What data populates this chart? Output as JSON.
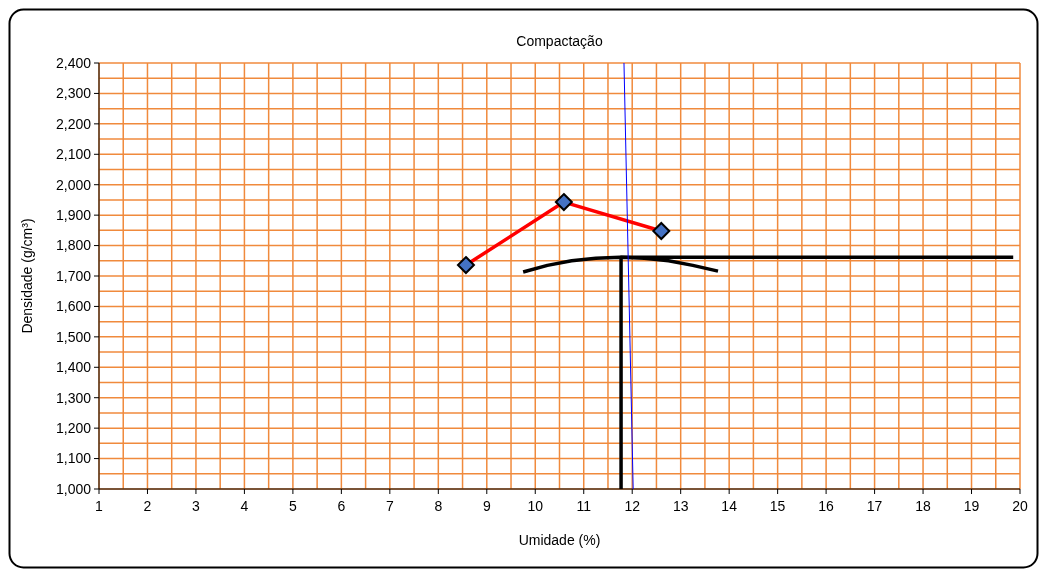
{
  "chart_data": {
    "type": "line",
    "title": "Compactação",
    "xlabel": "Umidade (%)",
    "ylabel": "Densidade (g/cm³)",
    "xlim": [
      1,
      20
    ],
    "xticks": [
      1,
      {
        "value": 1.5,
        "label": null
      },
      2,
      {
        "value": 2.5,
        "label": null
      },
      3,
      {
        "value": 3.5,
        "label": null
      },
      4,
      {
        "value": 4.5,
        "label": null
      },
      5,
      {
        "value": 5.5,
        "label": null
      },
      6,
      {
        "value": 6.5,
        "label": null
      },
      7,
      {
        "value": 7.5,
        "label": null
      },
      8,
      {
        "value": 8.5,
        "label": null
      },
      9,
      {
        "value": 9.5,
        "label": null
      },
      10,
      {
        "value": 10.5,
        "label": null
      },
      11,
      {
        "value": 11.5,
        "label": null
      },
      12,
      {
        "value": 12.5,
        "label": null
      },
      13,
      {
        "value": 13.5,
        "label": null
      },
      14,
      {
        "value": 14.5,
        "label": null
      },
      15,
      {
        "value": 15.5,
        "label": null
      },
      16,
      {
        "value": 16.5,
        "label": null
      },
      17,
      {
        "value": 17.5,
        "label": null
      },
      18,
      {
        "value": 18.5,
        "label": null
      },
      19,
      {
        "value": 19.5,
        "label": null
      },
      20
    ],
    "ylim": [
      1000,
      2400
    ],
    "yticks": [
      {
        "value": 1000,
        "label": "1,000"
      },
      {
        "value": 1050,
        "label": null
      },
      {
        "value": 1100,
        "label": "1,100"
      },
      {
        "value": 1150,
        "label": null
      },
      {
        "value": 1200,
        "label": "1,200"
      },
      {
        "value": 1250,
        "label": null
      },
      {
        "value": 1300,
        "label": "1,300"
      },
      {
        "value": 1350,
        "label": null
      },
      {
        "value": 1400,
        "label": "1,400"
      },
      {
        "value": 1450,
        "label": null
      },
      {
        "value": 1500,
        "label": "1,500"
      },
      {
        "value": 1550,
        "label": null
      },
      {
        "value": 1600,
        "label": "1,600"
      },
      {
        "value": 1650,
        "label": null
      },
      {
        "value": 1700,
        "label": "1,700"
      },
      {
        "value": 1750,
        "label": null
      },
      {
        "value": 1800,
        "label": "1,800"
      },
      {
        "value": 1850,
        "label": null
      },
      {
        "value": 1900,
        "label": "1,900"
      },
      {
        "value": 1950,
        "label": null
      },
      {
        "value": 2000,
        "label": "2,000"
      },
      {
        "value": 2050,
        "label": null
      },
      {
        "value": 2100,
        "label": "2,100"
      },
      {
        "value": 2150,
        "label": null
      },
      {
        "value": 2200,
        "label": "2,200"
      },
      {
        "value": 2250,
        "label": null
      },
      {
        "value": 2300,
        "label": "2,300"
      },
      {
        "value": 2350,
        "label": null
      },
      {
        "value": 2400,
        "label": "2,400"
      }
    ],
    "grid": true,
    "series": [
      {
        "color": "#ff0000",
        "marker": "diamond",
        "x": [
          8.57,
          10.59,
          12.6
        ],
        "values": [
          1736,
          1943,
          1848
        ]
      },
      {
        "color": "#000000",
        "marker": "none",
        "x": [
          9.75,
          10.25,
          10.75,
          11.25,
          11.75,
          12.25,
          12.75,
          13.25,
          13.77
        ],
        "values": [
          1713,
          1735,
          1750,
          1758,
          1762,
          1758,
          1750,
          1735,
          1716
        ]
      },
      {
        "color": "#000000",
        "marker": "none",
        "x": [
          11.77,
          11.77,
          19.86
        ],
        "values": [
          1000,
          1762,
          1762
        ]
      },
      {
        "color": "#0000ff",
        "marker": "none",
        "x": [
          11.83,
          12.02
        ],
        "values": [
          2400,
          1000
        ]
      }
    ]
  }
}
